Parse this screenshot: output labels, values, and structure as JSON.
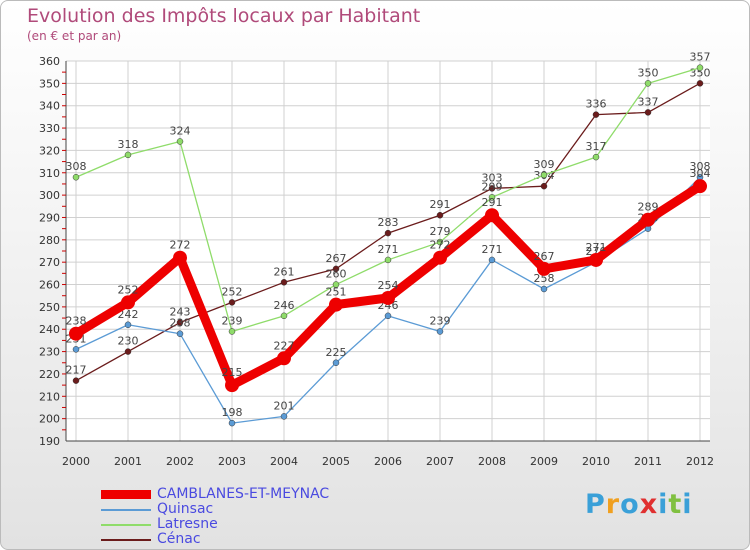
{
  "header": {
    "title": "Evolution des Impôts locaux par Habitant",
    "subtitle": "(en € et par an)"
  },
  "logo": {
    "letters": [
      "P",
      "r",
      "o",
      "x",
      "i",
      "t",
      "i"
    ],
    "colors": [
      "#3aa0d8",
      "#f0a020",
      "#3aa0d8",
      "#e03030",
      "#3aa0d8",
      "#80c040",
      "#3aa0d8"
    ]
  },
  "chart_data": {
    "type": "line",
    "title": "Evolution des Impôts locaux par Habitant",
    "ylabel": "(en € et par an)",
    "xlabel": "",
    "x": [
      "2000",
      "2001",
      "2002",
      "2003",
      "2004",
      "2005",
      "2006",
      "2007",
      "2008",
      "2009",
      "2010",
      "2011",
      "2012"
    ],
    "ylim": [
      190,
      360
    ],
    "yticks": [
      190,
      200,
      210,
      220,
      230,
      240,
      250,
      260,
      270,
      280,
      290,
      300,
      310,
      320,
      330,
      340,
      350,
      360
    ],
    "grid": true,
    "legend_position": "bottom-left",
    "series": [
      {
        "name": "Cénac",
        "color": "#6b1c1c",
        "values": [
          217,
          230,
          243,
          252,
          261,
          267,
          283,
          291,
          303,
          304,
          336,
          337,
          350
        ]
      },
      {
        "name": "Latresne",
        "color": "#8fdc6a",
        "values": [
          308,
          318,
          324,
          239,
          246,
          260,
          271,
          279,
          299,
          309,
          317,
          350,
          357
        ]
      },
      {
        "name": "Quinsac",
        "color": "#5b9bd5",
        "values": [
          231,
          242,
          238,
          198,
          201,
          225,
          246,
          239,
          271,
          258,
          270,
          285,
          308
        ]
      },
      {
        "name": "CAMBLANES-ET-MEYNAC",
        "color": "#ee0000",
        "values": [
          238,
          252,
          272,
          215,
          227,
          251,
          254,
          272,
          291,
          267,
          271,
          289,
          304
        ]
      }
    ],
    "legend_order": [
      "CAMBLANES-ET-MEYNAC",
      "Quinsac",
      "Latresne",
      "Cénac"
    ]
  }
}
